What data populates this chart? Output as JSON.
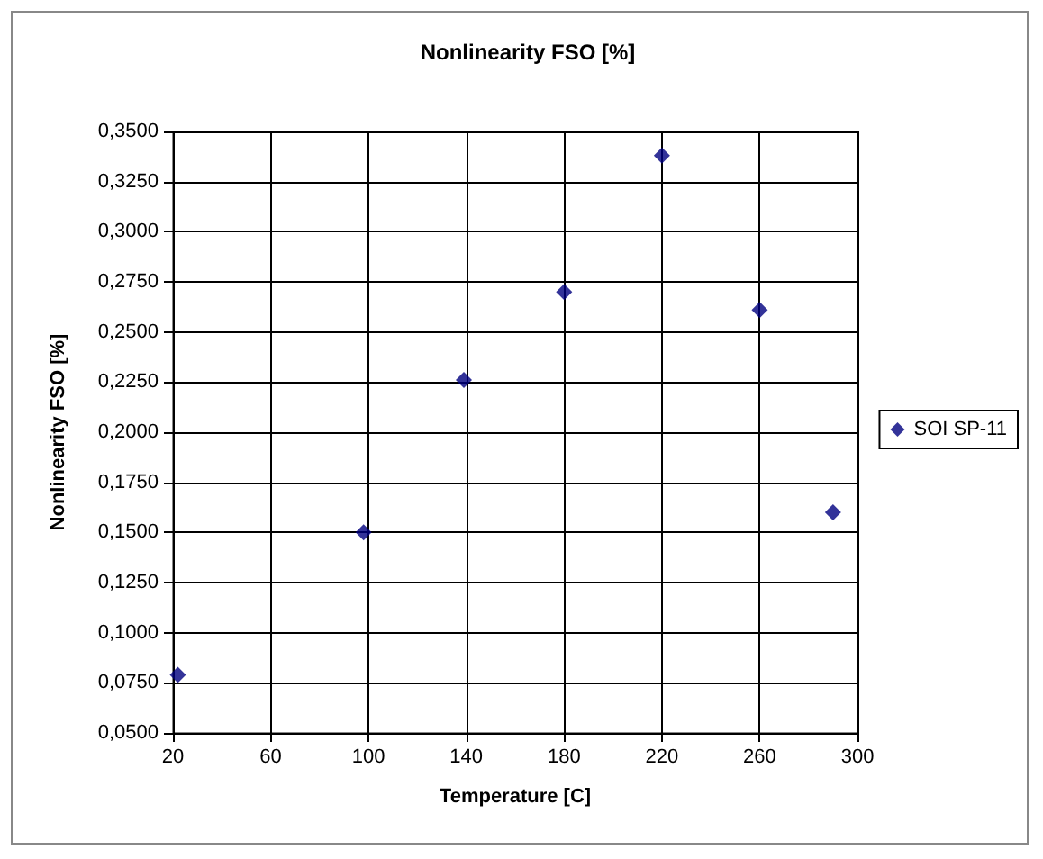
{
  "chart_data": {
    "type": "scatter",
    "title": "Nonlinearity FSO [%]",
    "xlabel": "Temperature [C]",
    "ylabel": "Nonlinearity FSO [%]",
    "x": [
      22,
      98,
      139,
      180,
      220,
      260,
      290
    ],
    "series": [
      {
        "name": "SOI SP-11",
        "color": "#000080",
        "values": [
          0.079,
          0.15,
          0.226,
          0.27,
          0.338,
          0.261,
          0.16
        ]
      }
    ],
    "xlim": [
      20,
      300
    ],
    "xticks": [
      20,
      60,
      100,
      140,
      180,
      220,
      260,
      300
    ],
    "ylim": [
      0.05,
      0.35
    ],
    "yticks": [
      {
        "value": 0.05,
        "label": "0,0500"
      },
      {
        "value": 0.075,
        "label": "0,0750"
      },
      {
        "value": 0.1,
        "label": "0,1000"
      },
      {
        "value": 0.125,
        "label": "0,1250"
      },
      {
        "value": 0.15,
        "label": "0,1500"
      },
      {
        "value": 0.175,
        "label": "0,1750"
      },
      {
        "value": 0.2,
        "label": "0,2000"
      },
      {
        "value": 0.225,
        "label": "0,2250"
      },
      {
        "value": 0.25,
        "label": "0,2500"
      },
      {
        "value": 0.275,
        "label": "0,2750"
      },
      {
        "value": 0.3,
        "label": "0,3000"
      },
      {
        "value": 0.325,
        "label": "0,3250"
      },
      {
        "value": 0.35,
        "label": "0,3500"
      }
    ],
    "grid": true,
    "legend": "right",
    "marker": "diamond"
  }
}
